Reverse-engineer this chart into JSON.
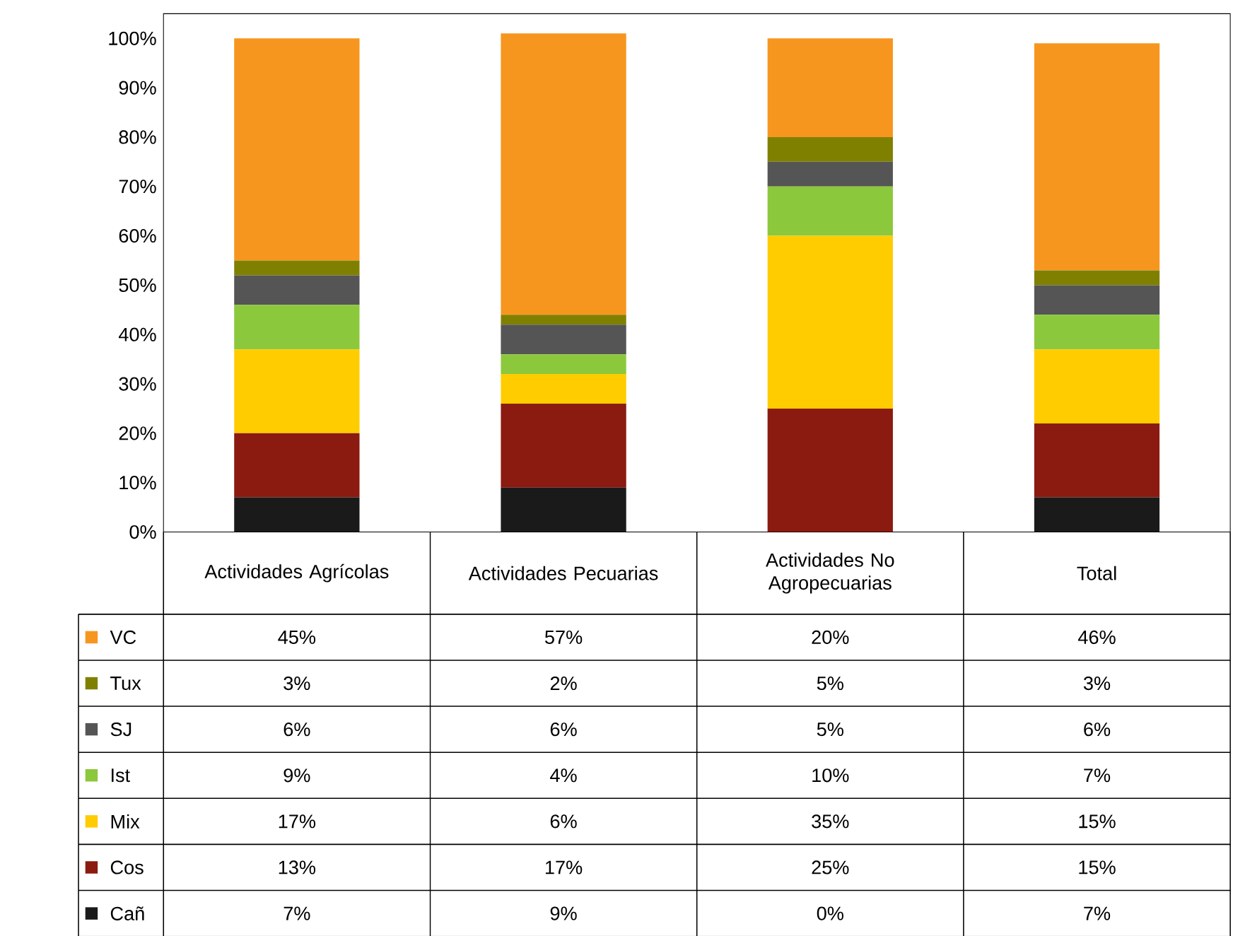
{
  "chart_data": {
    "type": "bar",
    "stacked": true,
    "categories": [
      "Actividades Agrícolas",
      "Actividades Pecuarias",
      "Actividades No Agropecuarias",
      "Total"
    ],
    "series": [
      {
        "name": "Cañ",
        "color": "#1a1a1a",
        "values": [
          7,
          9,
          0,
          7
        ],
        "value_labels": [
          "7%",
          "9%",
          "0%",
          "7%"
        ]
      },
      {
        "name": "Cos",
        "color": "#8b1a10",
        "values": [
          13,
          17,
          25,
          15
        ],
        "value_labels": [
          "13%",
          "17%",
          "25%",
          "15%"
        ]
      },
      {
        "name": "Mix",
        "color": "#ffcc00",
        "values": [
          17,
          6,
          35,
          15
        ],
        "value_labels": [
          "17%",
          "6%",
          "35%",
          "15%"
        ]
      },
      {
        "name": "Ist",
        "color": "#8cc83c",
        "values": [
          9,
          4,
          10,
          7
        ],
        "value_labels": [
          "9%",
          "4%",
          "10%",
          "7%"
        ]
      },
      {
        "name": "SJ",
        "color": "#555555",
        "values": [
          6,
          6,
          5,
          6
        ],
        "value_labels": [
          "6%",
          "6%",
          "5%",
          "6%"
        ]
      },
      {
        "name": "Tux",
        "color": "#808000",
        "values": [
          3,
          2,
          5,
          3
        ],
        "value_labels": [
          "3%",
          "2%",
          "5%",
          "3%"
        ]
      },
      {
        "name": "VC",
        "color": "#f7961e",
        "values": [
          45,
          57,
          20,
          46
        ],
        "value_labels": [
          "45%",
          "57%",
          "20%",
          "46%"
        ]
      }
    ],
    "ylim": [
      0,
      105
    ],
    "yticks": [
      {
        "value": 0,
        "label": "0%"
      },
      {
        "value": 10,
        "label": "10%"
      },
      {
        "value": 20,
        "label": "20%"
      },
      {
        "value": 30,
        "label": "30%"
      },
      {
        "value": 40,
        "label": "40%"
      },
      {
        "value": 50,
        "label": "50%"
      },
      {
        "value": 60,
        "label": "60%"
      },
      {
        "value": 70,
        "label": "70%"
      },
      {
        "value": 80,
        "label": "80%"
      },
      {
        "value": 90,
        "label": "90%"
      },
      {
        "value": 100,
        "label": "100%"
      }
    ],
    "legend": "bottom"
  }
}
